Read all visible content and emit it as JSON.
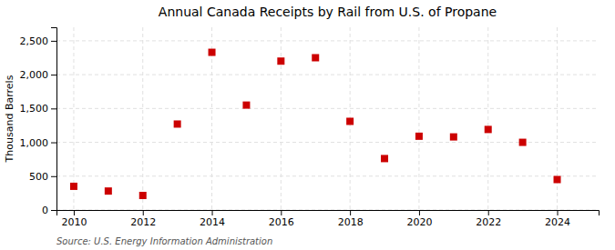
{
  "chart_data": {
    "type": "scatter",
    "title": "Annual Canada Receipts by Rail from U.S. of Propane",
    "ylabel": "Thousand Barrels",
    "annotations": [
      "Source: U.S. Energy Information Administration"
    ],
    "x": [
      2010,
      2011,
      2012,
      2013,
      2014,
      2015,
      2016,
      2017,
      2018,
      2019,
      2020,
      2021,
      2022,
      2023,
      2024
    ],
    "values": [
      350,
      280,
      215,
      1270,
      2330,
      1550,
      2200,
      2250,
      1310,
      760,
      1090,
      1080,
      1190,
      1000,
      450
    ],
    "color": "#cc0000",
    "marker": "square",
    "xlim": [
      2009.5,
      2025.2
    ],
    "xticks": [
      2010,
      2012,
      2014,
      2016,
      2018,
      2020,
      2022,
      2024
    ],
    "ylim": [
      0,
      2700
    ],
    "yticks": [
      0,
      500,
      {
        "value": 1000,
        "label": "1,000"
      },
      {
        "value": 1500,
        "label": "1,500"
      },
      {
        "value": 2000,
        "label": "2,000"
      },
      {
        "value": 2500,
        "label": "2,500"
      }
    ],
    "grid": true
  }
}
